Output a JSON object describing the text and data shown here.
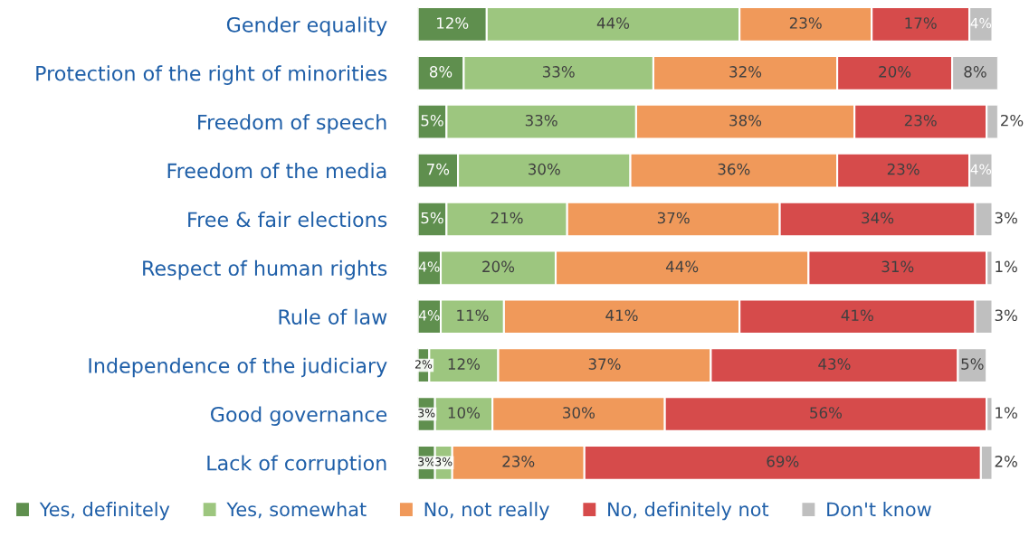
{
  "chart_data": {
    "type": "bar",
    "orientation": "horizontal",
    "stacked": true,
    "legend": "bottom",
    "categories": [
      "Gender equality",
      "Protection of the right of minorities",
      "Freedom of speech",
      "Freedom of the media",
      "Free & fair elections",
      "Respect of human rights",
      "Rule of law",
      "Independence of the judiciary",
      "Good governance",
      "Lack of corruption"
    ],
    "series": [
      {
        "name": "Yes, definitely",
        "color": "#5f8f4e",
        "values": [
          12,
          8,
          5,
          7,
          5,
          4,
          4,
          2,
          3,
          3
        ],
        "value_labels": [
          "12%",
          "8%",
          "5%",
          "7%",
          "5%",
          "4%",
          "4%",
          "2%",
          "3%",
          "3%"
        ]
      },
      {
        "name": "Yes, somewhat",
        "color": "#9dc67f",
        "values": [
          44,
          33,
          33,
          30,
          21,
          20,
          11,
          12,
          10,
          3
        ],
        "value_labels": [
          "44%",
          "33%",
          "33%",
          "30%",
          "21%",
          "20%",
          "11%",
          "12%",
          "10%",
          "3%"
        ]
      },
      {
        "name": "No, not really",
        "color": "#f0995a",
        "values": [
          23,
          32,
          38,
          36,
          37,
          44,
          41,
          37,
          30,
          23
        ],
        "value_labels": [
          "23%",
          "32%",
          "38%",
          "36%",
          "37%",
          "44%",
          "41%",
          "37%",
          "30%",
          "23%"
        ]
      },
      {
        "name": "No, definitely not",
        "color": "#d64b4b",
        "values": [
          17,
          20,
          23,
          23,
          34,
          31,
          41,
          43,
          56,
          69
        ],
        "value_labels": [
          "17%",
          "20%",
          "23%",
          "23%",
          "34%",
          "31%",
          "41%",
          "43%",
          "56%",
          "69%"
        ]
      },
      {
        "name": "Don't know",
        "color": "#bfbfbf",
        "values": [
          4,
          8,
          2,
          4,
          3,
          1,
          3,
          5,
          1,
          2
        ],
        "value_labels": [
          "4%",
          "8%",
          "2%",
          "4%",
          "3%",
          "1%",
          "3%",
          "5%",
          "1%",
          "2%"
        ]
      }
    ]
  }
}
